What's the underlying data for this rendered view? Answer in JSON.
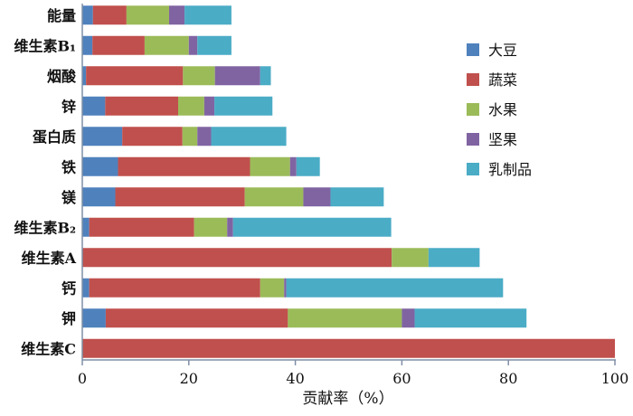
{
  "chart_data": {
    "type": "bar",
    "orientation": "horizontal",
    "stacked": true,
    "categories": [
      "能量",
      "维生素B₁",
      "烟酸",
      "锌",
      "蛋白质",
      "铁",
      "镁",
      "维生素B₂",
      "维生素A",
      "钙",
      "钾",
      "维生素C"
    ],
    "series": [
      {
        "name": "大豆",
        "color": "#4f81bd",
        "values": [
          2.0,
          1.9,
          0.7,
          4.3,
          7.5,
          6.7,
          6.2,
          1.3,
          0,
          1.3,
          4.4,
          0
        ]
      },
      {
        "name": "蔬菜",
        "color": "#c0504d",
        "values": [
          6.3,
          9.8,
          18.2,
          13.7,
          11.3,
          24.8,
          24.3,
          19.7,
          58.1,
          32.1,
          34.2,
          100
        ]
      },
      {
        "name": "水果",
        "color": "#9bbb59",
        "values": [
          8.0,
          8.3,
          6.0,
          4.9,
          2.8,
          7.5,
          11.0,
          6.2,
          6.9,
          4.5,
          21.4,
          0
        ]
      },
      {
        "name": "坚果",
        "color": "#8064a2",
        "values": [
          2.9,
          1.6,
          8.5,
          1.9,
          2.6,
          1.2,
          5.1,
          1.1,
          0,
          0.4,
          2.4,
          0
        ]
      },
      {
        "name": "乳制品",
        "color": "#4bacc6",
        "values": [
          8.8,
          6.4,
          2.0,
          10.9,
          14.1,
          4.4,
          10.0,
          29.7,
          9.6,
          40.7,
          21.0,
          0
        ]
      }
    ],
    "xlabel": "贡献率（%）",
    "xlim": [
      0,
      100
    ],
    "xticks": [
      "0",
      "20",
      "40",
      "60",
      "80",
      "100"
    ],
    "grid": false,
    "legend": "right"
  }
}
